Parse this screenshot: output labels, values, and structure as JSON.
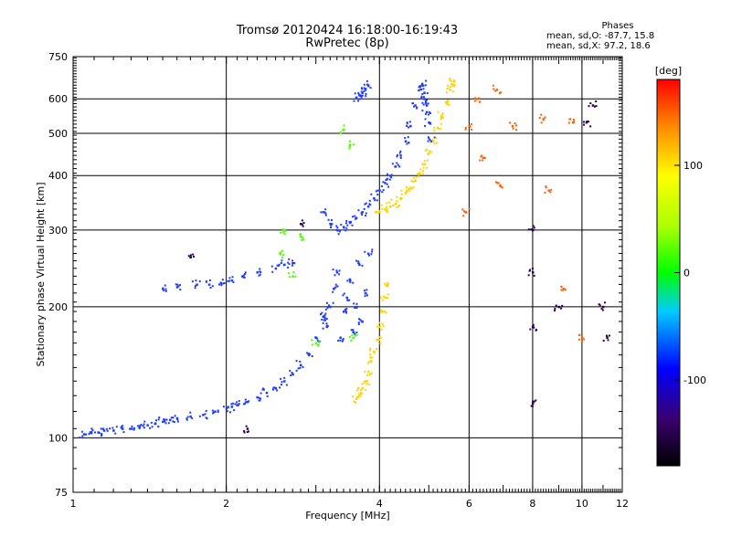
{
  "header": {
    "title_line1": "Tromsø 20120424 16:18:00-16:19:43",
    "title_line2": "RwPretec (8p)"
  },
  "phase_stats": {
    "heading": "Phases",
    "line_o": "mean, sd,O: -87.7, 15.8",
    "line_x": "mean, sd,X:  97.2, 18.6"
  },
  "chart_data": {
    "type": "scatter",
    "xlabel": "Frequency [MHz]",
    "ylabel": "Stationary phase Virtual Height [km]",
    "xscale": "log",
    "yscale": "log",
    "xlim": [
      1,
      12
    ],
    "ylim": [
      75,
      750
    ],
    "xticks": [
      1,
      2,
      4,
      6,
      8,
      10,
      12
    ],
    "yticks": [
      75,
      100,
      200,
      300,
      400,
      500,
      600,
      750
    ],
    "x_gridlines": [
      2,
      4,
      6,
      8,
      10
    ],
    "y_gridlines": [
      100,
      200,
      300,
      400,
      500,
      600
    ],
    "grid": true,
    "colorbar": {
      "label": "[deg]",
      "range": [
        -180,
        180
      ],
      "ticks": [
        100,
        0,
        -100
      ]
    },
    "series": [
      {
        "phase": -90,
        "x": [
          1.05,
          1.08,
          1.12,
          1.15,
          1.2,
          1.25,
          1.3,
          1.35,
          1.4,
          1.45,
          1.5,
          1.55,
          1.6,
          1.7,
          1.8,
          1.9,
          2.0,
          2.05,
          2.1,
          2.2,
          2.3,
          2.4,
          2.5,
          2.6,
          2.7,
          2.8,
          2.9,
          3.0,
          3.1
        ],
        "y": [
          102,
          103,
          103,
          104,
          104,
          105,
          105,
          106,
          107,
          108,
          109,
          110,
          111,
          112,
          113,
          115,
          117,
          118,
          119,
          121,
          124,
          127,
          130,
          135,
          140,
          147,
          156,
          170,
          190
        ]
      },
      {
        "phase": -90,
        "x": [
          1.5,
          1.6,
          1.75,
          1.85,
          1.95,
          2.05,
          2.15,
          2.3,
          2.5,
          2.6,
          2.7
        ],
        "y": [
          220,
          222,
          225,
          225,
          227,
          230,
          235,
          240,
          245,
          250,
          252
        ]
      },
      {
        "phase": -90,
        "x": [
          3.1,
          3.15,
          3.2,
          3.25,
          3.3,
          3.35,
          3.4,
          3.45,
          3.5,
          3.55,
          3.6,
          3.65,
          3.7,
          3.75,
          3.8
        ],
        "y": [
          190,
          180,
          200,
          220,
          240,
          170,
          195,
          210,
          230,
          175,
          200,
          250,
          185,
          215,
          265
        ]
      },
      {
        "phase": -90,
        "x": [
          3.1,
          3.2,
          3.3,
          3.4,
          3.5,
          3.6,
          3.7,
          3.8,
          3.9,
          4.0,
          4.1,
          4.2,
          4.3,
          4.4,
          4.5,
          4.6,
          4.7,
          4.8
        ],
        "y": [
          330,
          310,
          300,
          305,
          312,
          320,
          330,
          340,
          355,
          370,
          385,
          400,
          420,
          445,
          480,
          520,
          580,
          640
        ]
      },
      {
        "phase": -90,
        "x": [
          3.6,
          3.65,
          3.7,
          3.75,
          3.8
        ],
        "y": [
          605,
          612,
          620,
          630,
          645
        ]
      },
      {
        "phase": -90,
        "x": [
          4.9,
          4.95,
          5.0,
          5.05,
          4.85,
          4.9,
          4.95
        ],
        "y": [
          620,
          580,
          530,
          480,
          650,
          600,
          560
        ]
      },
      {
        "phase": 100,
        "x": [
          4.0,
          4.1,
          4.2,
          4.3,
          4.4,
          4.5,
          4.6,
          4.7,
          4.8,
          4.9,
          5.0,
          5.1,
          5.2,
          5.3,
          5.4,
          5.5,
          5.55,
          5.6
        ],
        "y": [
          330,
          335,
          340,
          345,
          355,
          365,
          375,
          390,
          405,
          425,
          450,
          480,
          515,
          550,
          590,
          630,
          650,
          660
        ]
      },
      {
        "phase": 100,
        "x": [
          3.6,
          3.65,
          3.7,
          3.75,
          3.8,
          3.85,
          3.9,
          3.95,
          4.0,
          4.05,
          4.1,
          4.15
        ],
        "y": [
          123,
          126,
          130,
          135,
          142,
          150,
          158,
          168,
          180,
          195,
          210,
          225
        ]
      },
      {
        "phase": 20,
        "x": [
          3.4,
          3.5,
          3.55,
          2.8,
          2.6,
          2.55,
          3.0,
          2.7
        ],
        "y": [
          510,
          470,
          170,
          290,
          300,
          265,
          165,
          235
        ]
      },
      {
        "phase": -150,
        "x": [
          1.7,
          2.2,
          2.8,
          8.0,
          8.0,
          8.0,
          8.0,
          9.0,
          10.2,
          10.5,
          11.0,
          11.2
        ],
        "y": [
          260,
          105,
          310,
          120,
          180,
          240,
          300,
          200,
          530,
          580,
          200,
          170
        ]
      },
      {
        "phase": 150,
        "x": [
          5.9,
          6.0,
          6.2,
          6.8,
          7.3,
          8.4,
          8.6,
          9.2,
          9.6,
          10.0,
          6.4,
          6.9
        ],
        "y": [
          330,
          520,
          600,
          630,
          520,
          540,
          370,
          220,
          530,
          170,
          440,
          380
        ]
      }
    ]
  }
}
